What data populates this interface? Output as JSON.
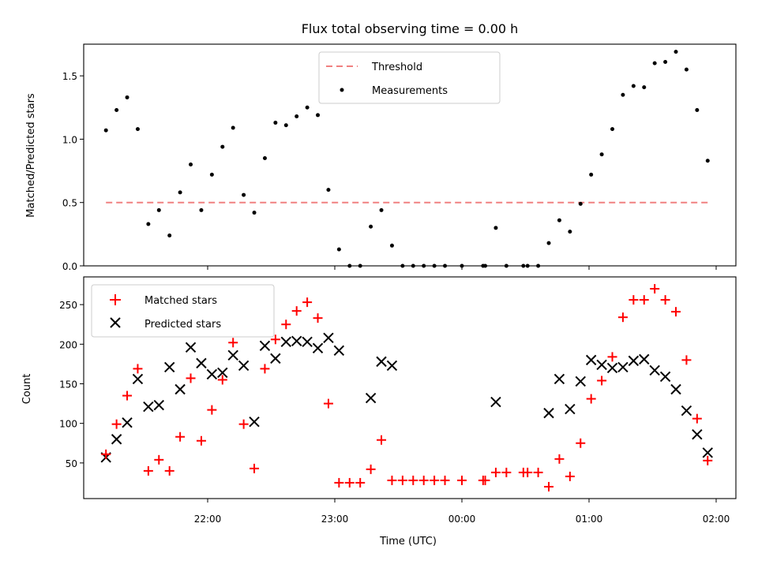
{
  "chart_data": [
    {
      "type": "scatter",
      "title": "Flux total observing time = 0.00 h",
      "ylabel": "Matched/Predicted stars",
      "xlabel": "",
      "ylim": [
        0,
        1.75
      ],
      "yticks": [
        "0.0",
        "0.5",
        "1.0",
        "1.5"
      ],
      "grid": false,
      "legend": "top-center",
      "threshold": {
        "name": "Threshold",
        "value": 0.5,
        "color": "#f08080",
        "x_range": [
          "21:12",
          "01:56"
        ]
      },
      "series": [
        {
          "name": "Measurements",
          "color": "#000000",
          "x": [
            "21:12",
            "21:17",
            "21:22",
            "21:27",
            "21:32",
            "21:37",
            "21:42",
            "21:47",
            "21:52",
            "21:57",
            "22:02",
            "22:07",
            "22:12",
            "22:17",
            "22:22",
            "22:27",
            "22:32",
            "22:37",
            "22:42",
            "22:47",
            "22:52",
            "22:57",
            "23:02",
            "23:07",
            "23:12",
            "23:17",
            "23:22",
            "23:27",
            "23:32",
            "23:37",
            "23:42",
            "23:47",
            "23:52",
            "00:00",
            "00:10",
            "00:11",
            "00:16",
            "00:21",
            "00:29",
            "00:31",
            "00:36",
            "00:41",
            "00:46",
            "00:51",
            "00:56",
            "01:01",
            "01:06",
            "01:11",
            "01:16",
            "01:21",
            "01:26",
            "01:31",
            "01:36",
            "01:41",
            "01:46",
            "01:51",
            "01:56"
          ],
          "values": [
            1.07,
            1.23,
            1.33,
            1.08,
            0.33,
            0.44,
            0.24,
            0.58,
            0.8,
            0.44,
            0.72,
            0.94,
            1.09,
            0.56,
            0.42,
            0.85,
            1.13,
            1.11,
            1.18,
            1.25,
            1.19,
            0.6,
            0.13,
            0.0,
            0.0,
            0.31,
            0.44,
            0.16,
            0.0,
            0.0,
            0.0,
            0.0,
            0.0,
            0.0,
            0.0,
            0.0,
            0.3,
            0.0,
            0.0,
            0.0,
            0.0,
            0.18,
            0.36,
            0.27,
            0.49,
            0.72,
            0.88,
            1.08,
            1.35,
            1.42,
            1.41,
            1.6,
            1.61,
            1.69,
            1.55,
            1.23,
            0.83
          ]
        }
      ]
    },
    {
      "type": "scatter",
      "title": "",
      "xlabel": "Time (UTC)",
      "ylabel": "Count",
      "ylim": [
        5,
        285
      ],
      "yticks": [
        "50",
        "100",
        "150",
        "200",
        "250"
      ],
      "xticks": [
        "22:00",
        "23:00",
        "00:00",
        "01:00",
        "02:00"
      ],
      "grid": false,
      "legend": "top-left",
      "series": [
        {
          "name": "Matched stars",
          "marker": "+",
          "color": "#ff0000",
          "x": [
            "21:12",
            "21:17",
            "21:22",
            "21:27",
            "21:32",
            "21:37",
            "21:42",
            "21:47",
            "21:52",
            "21:57",
            "22:02",
            "22:07",
            "22:12",
            "22:17",
            "22:22",
            "22:27",
            "22:32",
            "22:37",
            "22:42",
            "22:47",
            "22:52",
            "22:57",
            "23:02",
            "23:07",
            "23:12",
            "23:17",
            "23:22",
            "23:27",
            "23:32",
            "23:37",
            "23:42",
            "23:47",
            "23:52",
            "00:00",
            "00:10",
            "00:11",
            "00:16",
            "00:21",
            "00:29",
            "00:31",
            "00:36",
            "00:41",
            "00:46",
            "00:51",
            "00:56",
            "01:01",
            "01:06",
            "01:11",
            "01:16",
            "01:21",
            "01:26",
            "01:31",
            "01:36",
            "01:41",
            "01:46",
            "01:51",
            "01:56"
          ],
          "values": [
            61,
            99,
            135,
            169,
            40,
            54,
            40,
            83,
            157,
            78,
            117,
            155,
            202,
            99,
            43,
            169,
            206,
            225,
            242,
            253,
            233,
            125,
            25,
            25,
            25,
            42,
            79,
            28,
            28,
            28,
            28,
            28,
            28,
            28,
            28,
            28,
            38,
            38,
            38,
            38,
            38,
            20,
            55,
            33,
            75,
            131,
            154,
            184,
            234,
            256,
            256,
            270,
            256,
            241,
            180,
            106,
            53
          ]
        },
        {
          "name": "Predicted stars",
          "marker": "x",
          "color": "#000000",
          "x": [
            "21:12",
            "21:17",
            "21:22",
            "21:27",
            "21:32",
            "21:37",
            "21:42",
            "21:47",
            "21:52",
            "21:57",
            "22:02",
            "22:07",
            "22:12",
            "22:17",
            "22:22",
            "22:27",
            "22:32",
            "22:37",
            "22:42",
            "22:47",
            "22:52",
            "22:57",
            "23:02",
            "23:17",
            "23:22",
            "23:27",
            "00:16",
            "00:41",
            "00:46",
            "00:51",
            "00:56",
            "01:01",
            "01:06",
            "01:11",
            "01:16",
            "01:21",
            "01:26",
            "01:31",
            "01:36",
            "01:41",
            "01:46",
            "01:51",
            "01:56"
          ],
          "values": [
            57,
            80,
            101,
            156,
            121,
            123,
            171,
            143,
            196,
            176,
            162,
            164,
            186,
            173,
            102,
            198,
            182,
            203,
            204,
            203,
            195,
            208,
            192,
            132,
            178,
            173,
            127,
            113,
            156,
            118,
            153,
            180,
            174,
            170,
            171,
            179,
            181,
            167,
            159,
            143,
            116,
            86,
            63
          ]
        }
      ]
    }
  ]
}
